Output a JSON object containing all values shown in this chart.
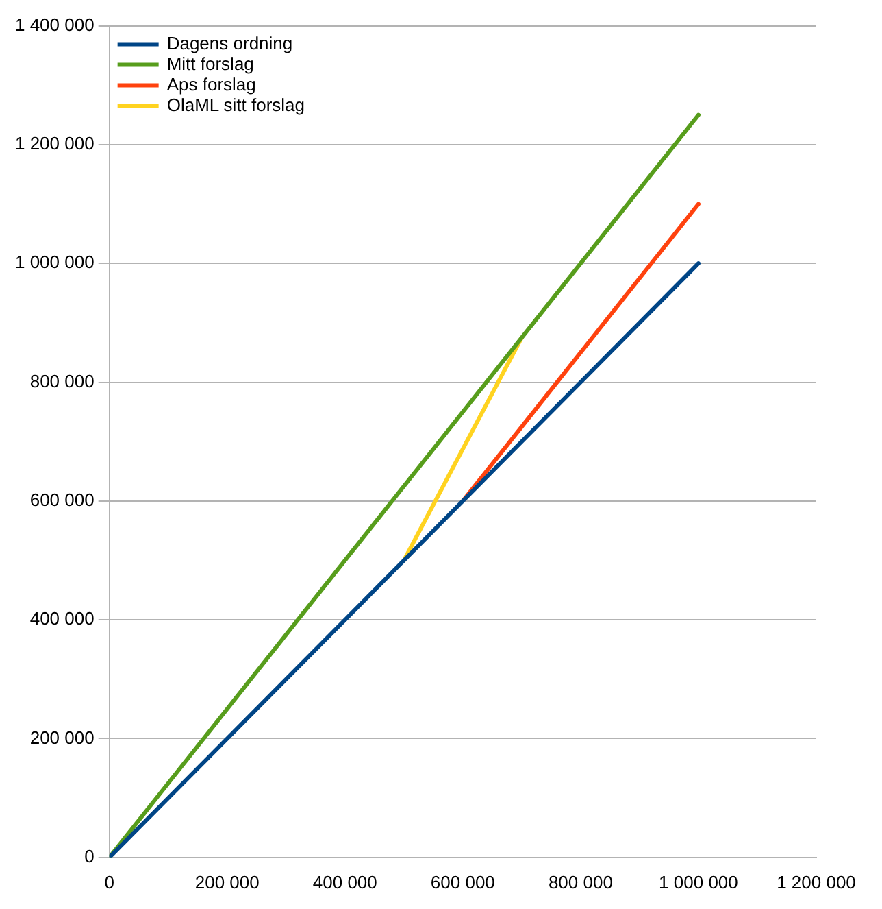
{
  "chart_data": {
    "type": "line",
    "legend": "top left",
    "grid": "y",
    "marker": "none",
    "line_style": "solid",
    "xlim": [
      0,
      1200000
    ],
    "ylim": [
      0,
      1400000
    ],
    "xticks": [
      0,
      {
        "value": 200000,
        "label": "200 000"
      },
      {
        "value": 400000,
        "label": "400 000"
      },
      {
        "value": 600000,
        "label": "600 000"
      },
      {
        "value": 800000,
        "label": "800 000"
      },
      {
        "value": 1000000,
        "label": "1 000 000"
      },
      {
        "value": 1200000,
        "label": "1 200 000"
      }
    ],
    "yticks": [
      0,
      {
        "value": 200000,
        "label": "200 000"
      },
      {
        "value": 400000,
        "label": "400 000"
      },
      {
        "value": 600000,
        "label": "600 000"
      },
      {
        "value": 800000,
        "label": "800 000"
      },
      {
        "value": 1000000,
        "label": "1 000 000"
      },
      {
        "value": 1200000,
        "label": "1 200 000"
      },
      {
        "value": 1400000,
        "label": "1 400 000"
      }
    ],
    "series": [
      {
        "name": "Dagens ordning",
        "color": "#004586",
        "x": [
          0,
          1000000
        ],
        "values": [
          0,
          1000000
        ]
      },
      {
        "name": "Mitt forslag",
        "color": "#579d1c",
        "x": [
          0,
          1000000
        ],
        "values": [
          0,
          1250000
        ]
      },
      {
        "name": "Aps forslag",
        "color": "#ff420e",
        "x": [
          600000,
          1000000
        ],
        "values": [
          600000,
          1100000
        ]
      },
      {
        "name": "OlaML sitt forslag",
        "color": "#ffd320",
        "x": [
          500000,
          700000
        ],
        "values": [
          500000,
          875000
        ]
      }
    ]
  }
}
